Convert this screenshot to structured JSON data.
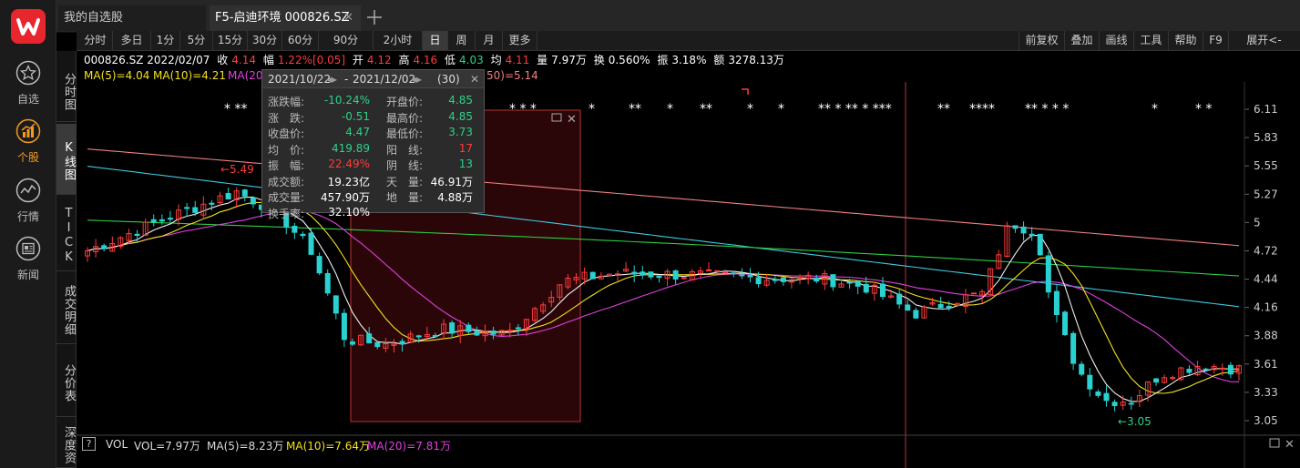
{
  "app": {
    "nav": [
      {
        "label": "自选",
        "icon": "star-icon"
      },
      {
        "label": "个股",
        "icon": "stock-chart-icon",
        "active": true
      },
      {
        "label": "行情",
        "icon": "market-wave-icon"
      },
      {
        "label": "新闻",
        "icon": "news-icon"
      }
    ]
  },
  "tabs": [
    {
      "label": "我的自选股",
      "active": false
    },
    {
      "label": "F5-启迪环境 000826.SZ",
      "active": true
    }
  ],
  "periods": [
    "分时",
    "多日",
    "1分",
    "5分",
    "15分",
    "30分",
    "60分",
    "90分",
    "2小时",
    "日",
    "周",
    "月",
    "更多"
  ],
  "selected_period": "日",
  "right_tools": [
    "前复权",
    "叠加",
    "画线",
    "工具",
    "帮助",
    "F9",
    "展开<-"
  ],
  "side_tabs": [
    {
      "label": "分时图",
      "selected": false
    },
    {
      "label": "K线图",
      "selected": true
    },
    {
      "label": "TICK",
      "selected": false
    },
    {
      "label": "成交明细",
      "selected": false
    },
    {
      "label": "分价表",
      "selected": false
    },
    {
      "label": "深度资",
      "selected": false
    }
  ],
  "quote": {
    "code_date": "000826.SZ 2022/02/07",
    "close_label": "收",
    "close": "4.14",
    "change_label": "幅",
    "change": "1.22%[0.05]",
    "open_label": "开",
    "open": "4.12",
    "high_label": "高",
    "high": "4.16",
    "low_label": "低",
    "low": "4.03",
    "avg_label": "均",
    "avg": "4.11",
    "volume_label": "量",
    "volume": "7.97万",
    "turnover_label": "换",
    "turnover": "0.560%",
    "amplitude_label": "振",
    "amplitude": "3.18%",
    "amount_label": "额",
    "amount": "3278.13万"
  },
  "ma_labels": {
    "ma5": "MA(5)=4.04",
    "ma10": "MA(10)=4.21",
    "ma20": "MA(20)",
    "ma250": "50)=5.14"
  },
  "colors": {
    "up": "#ff3b3b",
    "down": "#2ad1d1",
    "ma5": "#f0f0f0",
    "ma10": "#f5e11e",
    "ma20": "#e040e0",
    "ma60": "#2ecc40",
    "ma120": "#40c8e0",
    "ma250": "#f08080"
  },
  "popup": {
    "start_date": "2021/10/22",
    "end_date": "2021/12/02",
    "sep": "-",
    "count": "(30)",
    "rows_left": [
      {
        "k": "涨跌幅:",
        "v": "-10.24%",
        "color": "green"
      },
      {
        "k": "涨　跌:",
        "v": "-0.51",
        "color": "green"
      },
      {
        "k": "收盘价:",
        "v": "4.47",
        "color": "green"
      },
      {
        "k": "均　价:",
        "v": "419.89",
        "color": "green"
      },
      {
        "k": "振　幅:",
        "v": "22.49%",
        "color": "red"
      },
      {
        "k": "成交额:",
        "v": "19.23亿",
        "color": "white"
      },
      {
        "k": "成交量:",
        "v": "457.90万",
        "color": "white"
      },
      {
        "k": "换手率:",
        "v": "32.10%",
        "color": "white"
      }
    ],
    "rows_right": [
      {
        "k": "开盘价:",
        "v": "4.85",
        "color": "green"
      },
      {
        "k": "最高价:",
        "v": "4.85",
        "color": "green"
      },
      {
        "k": "最低价:",
        "v": "3.73",
        "color": "green"
      },
      {
        "k": "阳　线:",
        "v": "17",
        "color": "red"
      },
      {
        "k": "阴　线:",
        "v": "13",
        "color": "green"
      },
      {
        "k": "天　量:",
        "v": "46.91万",
        "color": "white"
      },
      {
        "k": "地　量:",
        "v": "4.88万",
        "color": "white"
      }
    ]
  },
  "chart_data": {
    "type": "candlestick",
    "price_ticks": [
      "6.11",
      "5.83",
      "5.55",
      "5.27",
      "5",
      "4.72",
      "4.44",
      "4.16",
      "3.88",
      "3.61",
      "3.33",
      "3.05"
    ],
    "ylim": [
      3.05,
      6.11
    ],
    "high_marker": "←5.49",
    "low_marker": "←3.05",
    "star_marks": [
      "* **",
      "*",
      "* * *",
      "*",
      "**",
      "*",
      "**",
      "*",
      "*",
      "** * ** * ***",
      "**",
      "****",
      "** * * *",
      "*",
      "*  *"
    ],
    "volume": {
      "label": "VOL",
      "vol": "VOL=7.97万",
      "ma5": "MA(5)=8.23万",
      "ma10": "MA(10)=7.64万",
      "ma20": "MA(20)=7.81万"
    }
  }
}
